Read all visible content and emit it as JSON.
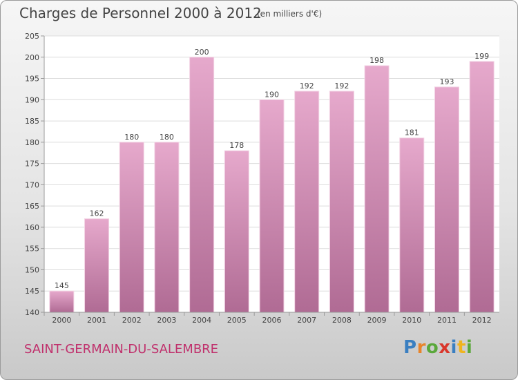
{
  "header": {
    "title": "Charges de Personnel 2000 à 2012",
    "subtitle": "(en milliers d'€)"
  },
  "footer": {
    "commune": "SAINT-GERMAIN-DU-SALEMBRE",
    "logo_letters": [
      "P",
      "r",
      "o",
      "x",
      "i",
      "t",
      "i"
    ],
    "logo_colors": [
      "#3a7fc1",
      "#e8842a",
      "#5aa83b",
      "#d9362b",
      "#3a7fc1",
      "#f0b41e",
      "#5aa83b"
    ]
  },
  "chart_data": {
    "type": "bar",
    "categories": [
      "2000",
      "2001",
      "2002",
      "2003",
      "2004",
      "2005",
      "2006",
      "2007",
      "2008",
      "2009",
      "2010",
      "2011",
      "2012"
    ],
    "values": [
      145,
      162,
      180,
      180,
      200,
      178,
      190,
      192,
      192,
      198,
      181,
      193,
      199
    ],
    "ylim": [
      140,
      205
    ],
    "yticks": [
      140,
      145,
      150,
      155,
      160,
      165,
      170,
      175,
      180,
      185,
      190,
      195,
      200,
      205
    ],
    "grid": true,
    "legend": "none",
    "bar_color_top": "#e6a9cc",
    "bar_color_bottom": "#b06b94",
    "plot_background": "#ffffff"
  }
}
